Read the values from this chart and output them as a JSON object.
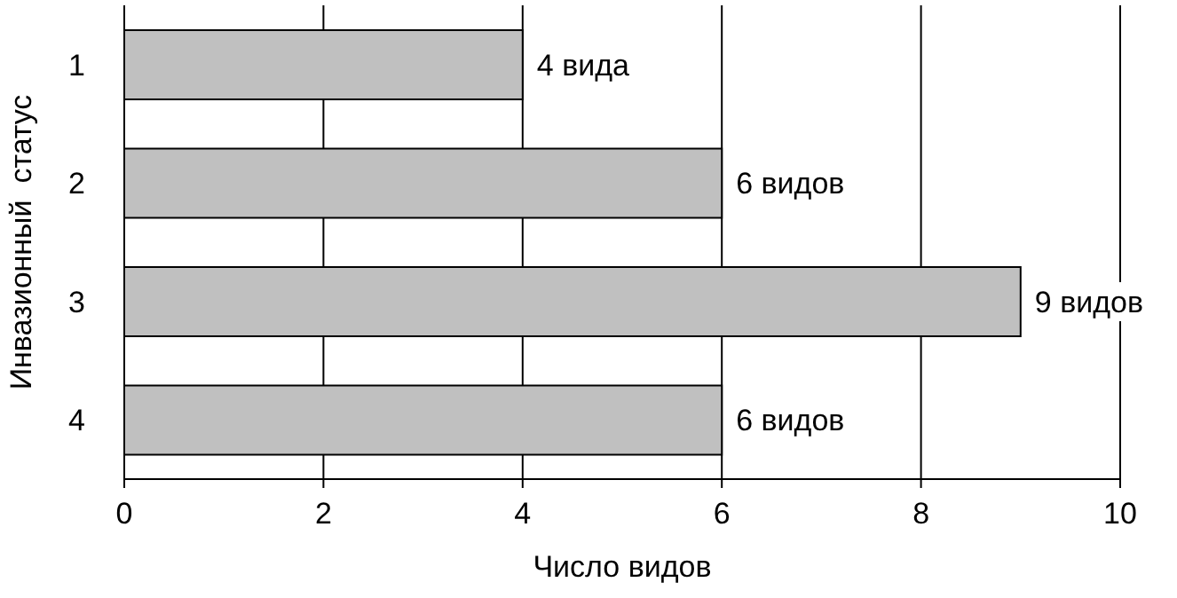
{
  "chart_data": {
    "type": "bar",
    "orientation": "horizontal",
    "xlabel": "Число видов",
    "ylabel": "Инвазионный  статус",
    "categories": [
      "1",
      "2",
      "3",
      "4"
    ],
    "values": [
      4,
      6,
      9,
      6
    ],
    "value_labels": [
      "4 вида",
      "6 видов",
      "9 видов",
      "6 видов"
    ],
    "color": "#c0c0c0",
    "xlim": [
      0,
      10
    ],
    "xticks": [
      0,
      2,
      4,
      6,
      8,
      10
    ],
    "grid": "x"
  }
}
